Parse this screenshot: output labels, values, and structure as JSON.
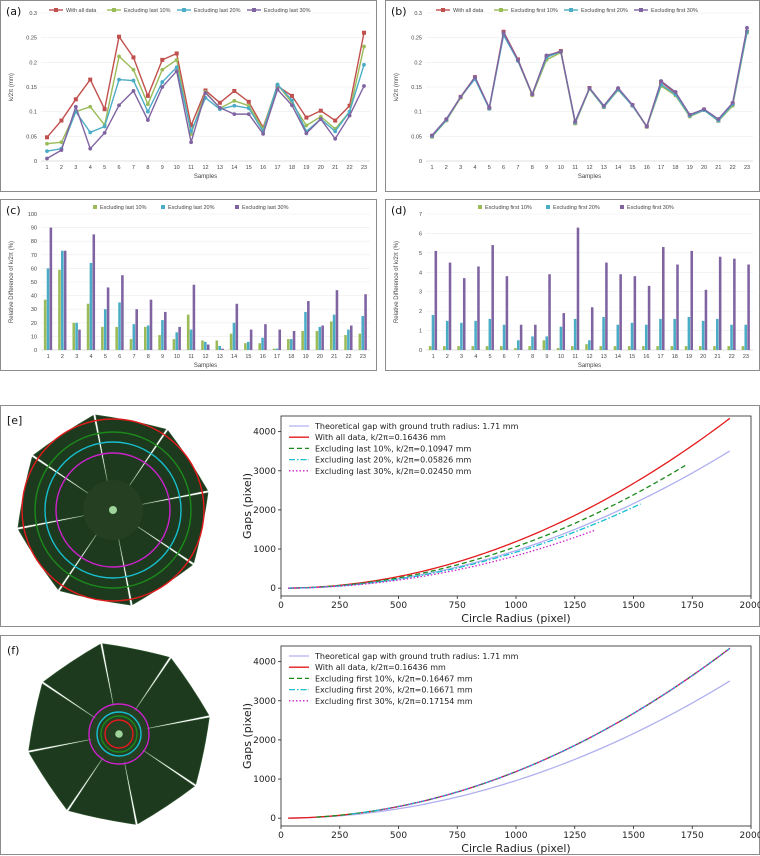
{
  "panels": {
    "a": "(a)",
    "b": "(b)",
    "c": "(c)",
    "d": "(d)",
    "e": "[e]",
    "f": "(f)"
  },
  "colors": {
    "red": "#c0504d",
    "green": "#9bbb59",
    "cyan": "#4bacc6",
    "purple": "#8064a2",
    "m_theory": "#b0b0f0",
    "m_red": "#e41a1c",
    "m_green": "#1b8a1b",
    "m_cyan": "#17becf",
    "m_magenta": "#cc22cc"
  },
  "chart_data": [
    {
      "id": "a",
      "type": "line",
      "xlabel": "Samples",
      "ylabel": "k/2π (mm)",
      "categories": [
        "1",
        "2",
        "3",
        "4",
        "5",
        "6",
        "7",
        "8",
        "9",
        "10",
        "11",
        "12",
        "13",
        "14",
        "15",
        "16",
        "17",
        "18",
        "19",
        "20",
        "21",
        "22",
        "23"
      ],
      "ylim": [
        0,
        0.3
      ],
      "yticks": [
        "0",
        "0.05",
        "0.1",
        "0.15",
        "0.2",
        "0.25",
        "0.3"
      ],
      "series": [
        {
          "name": "With all data",
          "color": "red",
          "values": [
            0.048,
            0.082,
            0.125,
            0.165,
            0.105,
            0.252,
            0.21,
            0.132,
            0.205,
            0.218,
            0.072,
            0.143,
            0.118,
            0.142,
            0.12,
            0.068,
            0.152,
            0.132,
            0.088,
            0.102,
            0.082,
            0.112,
            0.26
          ]
        },
        {
          "name": "Excluding last 10%",
          "color": "green",
          "values": [
            0.035,
            0.038,
            0.1,
            0.11,
            0.073,
            0.212,
            0.185,
            0.115,
            0.185,
            0.205,
            0.055,
            0.14,
            0.107,
            0.122,
            0.112,
            0.065,
            0.155,
            0.118,
            0.072,
            0.09,
            0.065,
            0.1,
            0.232
          ]
        },
        {
          "name": "Excluding last 20%",
          "color": "cyan",
          "values": [
            0.02,
            0.025,
            0.1,
            0.058,
            0.07,
            0.165,
            0.163,
            0.1,
            0.16,
            0.19,
            0.06,
            0.128,
            0.105,
            0.112,
            0.107,
            0.06,
            0.155,
            0.123,
            0.06,
            0.085,
            0.06,
            0.1,
            0.195
          ]
        },
        {
          "name": "Excluding last 30%",
          "color": "purple",
          "values": [
            0.005,
            0.022,
            0.11,
            0.025,
            0.057,
            0.113,
            0.142,
            0.083,
            0.15,
            0.182,
            0.038,
            0.138,
            0.108,
            0.095,
            0.095,
            0.055,
            0.145,
            0.113,
            0.056,
            0.085,
            0.045,
            0.092,
            0.152
          ]
        }
      ]
    },
    {
      "id": "b",
      "type": "line",
      "xlabel": "Samples",
      "ylabel": "k/2π (mm)",
      "categories": [
        "1",
        "2",
        "3",
        "4",
        "5",
        "6",
        "7",
        "8",
        "9",
        "10",
        "11",
        "12",
        "13",
        "14",
        "15",
        "16",
        "17",
        "18",
        "19",
        "20",
        "21",
        "22",
        "23"
      ],
      "ylim": [
        0,
        0.3
      ],
      "yticks": [
        "0",
        "0.05",
        "0.1",
        "0.15",
        "0.2",
        "0.25",
        "0.3"
      ],
      "series": [
        {
          "name": "With all data",
          "color": "red",
          "values": [
            0.05,
            0.083,
            0.13,
            0.17,
            0.107,
            0.262,
            0.206,
            0.135,
            0.212,
            0.223,
            0.077,
            0.148,
            0.11,
            0.145,
            0.113,
            0.07,
            0.16,
            0.138,
            0.093,
            0.104,
            0.082,
            0.116,
            0.262
          ]
        },
        {
          "name": "Excluding first 10%",
          "color": "green",
          "values": [
            0.049,
            0.082,
            0.128,
            0.168,
            0.106,
            0.258,
            0.203,
            0.133,
            0.205,
            0.22,
            0.076,
            0.146,
            0.109,
            0.144,
            0.112,
            0.069,
            0.152,
            0.133,
            0.09,
            0.103,
            0.081,
            0.112,
            0.26
          ]
        },
        {
          "name": "Excluding first 20%",
          "color": "cyan",
          "values": [
            0.05,
            0.083,
            0.13,
            0.166,
            0.106,
            0.255,
            0.203,
            0.135,
            0.21,
            0.222,
            0.078,
            0.147,
            0.11,
            0.145,
            0.112,
            0.07,
            0.155,
            0.135,
            0.092,
            0.103,
            0.082,
            0.115,
            0.262
          ]
        },
        {
          "name": "Excluding first 30%",
          "color": "purple",
          "values": [
            0.052,
            0.085,
            0.13,
            0.17,
            0.108,
            0.26,
            0.205,
            0.135,
            0.214,
            0.222,
            0.08,
            0.148,
            0.112,
            0.148,
            0.114,
            0.07,
            0.162,
            0.14,
            0.094,
            0.105,
            0.085,
            0.118,
            0.27
          ]
        }
      ]
    },
    {
      "id": "c",
      "type": "bar",
      "xlabel": "Samples",
      "ylabel": "Relative Difference of k/2π (%)",
      "categories": [
        "1",
        "2",
        "3",
        "4",
        "5",
        "6",
        "7",
        "8",
        "9",
        "10",
        "11",
        "12",
        "13",
        "14",
        "15",
        "16",
        "17",
        "18",
        "19",
        "20",
        "21",
        "22",
        "23"
      ],
      "ylim": [
        0,
        100
      ],
      "yticks": [
        "0",
        "10",
        "20",
        "30",
        "40",
        "50",
        "60",
        "70",
        "80",
        "90",
        "100"
      ],
      "series": [
        {
          "name": "Excluding last 10%",
          "color": "green",
          "values": [
            37,
            59,
            20,
            34,
            17,
            17,
            8,
            17,
            11,
            8,
            26,
            7,
            7,
            12,
            5,
            5,
            1,
            8,
            14,
            14,
            21,
            11,
            12
          ]
        },
        {
          "name": "Excluding last 20%",
          "color": "cyan",
          "values": [
            60,
            73,
            20,
            64,
            30,
            35,
            19,
            18,
            22,
            13,
            15,
            6,
            3,
            20,
            6,
            9,
            1,
            8,
            28,
            17,
            26,
            15,
            25
          ]
        },
        {
          "name": "Excluding last 30%",
          "color": "purple",
          "values": [
            90,
            73,
            15,
            85,
            46,
            55,
            30,
            37,
            28,
            17,
            48,
            4,
            1,
            34,
            15,
            19,
            15,
            14,
            36,
            18,
            44,
            18,
            41
          ]
        }
      ]
    },
    {
      "id": "d",
      "type": "bar",
      "xlabel": "Samples",
      "ylabel": "Relative Difference of k/2π (%)",
      "categories": [
        "1",
        "2",
        "3",
        "4",
        "5",
        "6",
        "7",
        "8",
        "9",
        "10",
        "11",
        "12",
        "13",
        "14",
        "15",
        "16",
        "17",
        "18",
        "19",
        "20",
        "21",
        "22",
        "23"
      ],
      "ylim": [
        0,
        7
      ],
      "yticks": [
        "0",
        "1",
        "2",
        "3",
        "4",
        "5",
        "6",
        "7"
      ],
      "series": [
        {
          "name": "Excluding first 10%",
          "color": "green",
          "values": [
            0.2,
            0.2,
            0.2,
            0.2,
            0.2,
            0.2,
            0.1,
            0.2,
            0.5,
            0.1,
            0.2,
            0.3,
            0.2,
            0.2,
            0.2,
            0.2,
            0.2,
            0.2,
            0.2,
            0.2,
            0.2,
            0.2,
            0.2
          ]
        },
        {
          "name": "Excluding first 20%",
          "color": "cyan",
          "values": [
            1.8,
            1.5,
            1.4,
            1.5,
            1.6,
            1.3,
            0.5,
            0.7,
            0.7,
            1.2,
            1.6,
            0.5,
            1.7,
            1.3,
            1.4,
            1.3,
            1.6,
            1.6,
            1.7,
            1.5,
            1.6,
            1.3,
            1.3
          ]
        },
        {
          "name": "Excluding first 30%",
          "color": "purple",
          "values": [
            5.1,
            4.5,
            3.7,
            4.3,
            5.4,
            3.8,
            1.3,
            1.3,
            3.9,
            1.9,
            6.3,
            2.2,
            4.5,
            3.9,
            3.8,
            3.3,
            5.3,
            4.4,
            5.1,
            3.1,
            4.8,
            4.7,
            4.4
          ]
        }
      ]
    },
    {
      "id": "e",
      "type": "line",
      "xlabel": "Circle Radius (pixel)",
      "ylabel": "Gaps (pixel)",
      "xlim": [
        0,
        2000
      ],
      "ylim": [
        -200,
        4400
      ],
      "xticks": [
        0,
        250,
        500,
        750,
        1000,
        1250,
        1500,
        1750,
        2000
      ],
      "yticks": [
        0,
        1000,
        2000,
        3000,
        4000
      ],
      "series": [
        {
          "name": "Theoretical gap with ground truth radius: 1.71 mm",
          "color": "m_theory",
          "dash": "",
          "xmin": 30,
          "xmax": 1910,
          "k": 0.000961
        },
        {
          "name": "With all data, k/2π=0.16436 mm",
          "color": "m_red",
          "dash": "",
          "xmin": 30,
          "xmax": 1910,
          "k": 0.00119
        },
        {
          "name": "Excluding last 10%, k/2π=0.10947 mm",
          "color": "m_green",
          "dash": "5,3",
          "xmin": 30,
          "xmax": 1720,
          "k": 0.00106
        },
        {
          "name": "Excluding last 20%, k/2π=0.05826 mm",
          "color": "m_cyan",
          "dash": "6,2,1.5,2",
          "xmin": 30,
          "xmax": 1530,
          "k": 0.00092
        },
        {
          "name": "Excluding last 30%, k/2π=0.02450 mm",
          "color": "m_magenta",
          "dash": "1.5,2",
          "xmin": 30,
          "xmax": 1340,
          "k": 0.00083
        }
      ]
    },
    {
      "id": "f",
      "type": "line",
      "xlabel": "Circle Radius (pixel)",
      "ylabel": "Gaps (pixel)",
      "xlim": [
        0,
        2000
      ],
      "ylim": [
        -200,
        4400
      ],
      "xticks": [
        0,
        250,
        500,
        750,
        1000,
        1250,
        1500,
        1750,
        2000
      ],
      "yticks": [
        0,
        1000,
        2000,
        3000,
        4000
      ],
      "series": [
        {
          "name": "Theoretical gap with ground truth radius: 1.71 mm",
          "color": "m_theory",
          "dash": "",
          "xmin": 30,
          "xmax": 1910,
          "k": 0.000961
        },
        {
          "name": "With all data, k/2π=0.16436 mm",
          "color": "m_red",
          "dash": "",
          "xmin": 30,
          "xmax": 1910,
          "k": 0.00119
        },
        {
          "name": "Excluding first 10%, k/2π=0.16467 mm",
          "color": "m_green",
          "dash": "5,3",
          "xmin": 150,
          "xmax": 1910,
          "k": 0.00119
        },
        {
          "name": "Excluding first 20%, k/2π=0.16671 mm",
          "color": "m_cyan",
          "dash": "6,2,1.5,2",
          "xmin": 300,
          "xmax": 1910,
          "k": 0.00119
        },
        {
          "name": "Excluding first 30%, k/2π=0.17154 mm",
          "color": "m_magenta",
          "dash": "1.5,2",
          "xmin": 420,
          "xmax": 1910,
          "k": 0.00119
        }
      ]
    }
  ]
}
